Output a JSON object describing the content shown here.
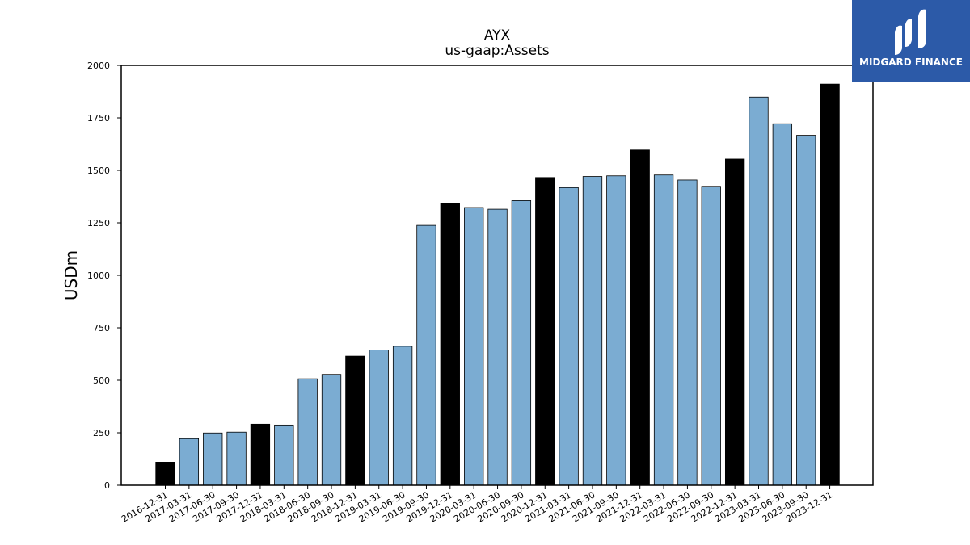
{
  "logo": {
    "text": "MIDGARD FINANCE",
    "bg_color": "#2c5aa8"
  },
  "chart_data": {
    "type": "bar",
    "title": "AYX",
    "subtitle": "us-gaap:Assets",
    "ylabel": "USDm",
    "xlabel": "",
    "ylim": [
      0,
      2000
    ],
    "yticks": [
      0,
      250,
      500,
      750,
      1000,
      1250,
      1500,
      1750,
      2000
    ],
    "grid": false,
    "categories": [
      "2016-12-31",
      "2017-03-31",
      "2017-06-30",
      "2017-09-30",
      "2017-12-31",
      "2018-03-31",
      "2018-06-30",
      "2018-09-30",
      "2018-12-31",
      "2019-03-31",
      "2019-06-30",
      "2019-09-30",
      "2019-12-31",
      "2020-03-31",
      "2020-06-30",
      "2020-09-30",
      "2020-12-31",
      "2021-03-31",
      "2021-06-30",
      "2021-09-30",
      "2021-12-31",
      "2022-03-31",
      "2022-06-30",
      "2022-09-30",
      "2022-12-31",
      "2023-03-31",
      "2023-06-30",
      "2023-09-30",
      "2023-12-31"
    ],
    "values": [
      110,
      222,
      249,
      253,
      291,
      287,
      507,
      528,
      615,
      644,
      662,
      1238,
      1342,
      1323,
      1315,
      1356,
      1466,
      1418,
      1471,
      1474,
      1597,
      1478,
      1454,
      1424,
      1554,
      1849,
      1722,
      1667,
      1911
    ],
    "colors": {
      "annual": "#000000",
      "quarterly": "#7bacd2"
    },
    "annual_period_suffix": "12-31"
  }
}
